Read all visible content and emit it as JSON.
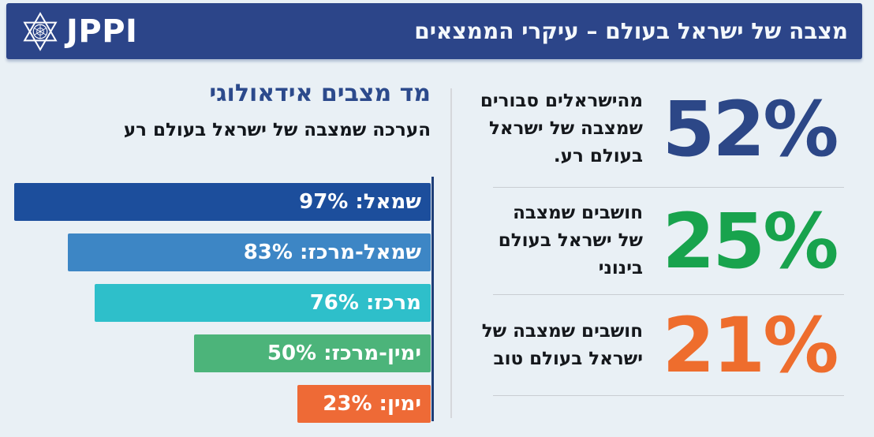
{
  "header": {
    "logo_text": "JPPI",
    "logo_icon": "star-of-david-icon",
    "title": "מצבה של ישראל בעולם – עיקרי הממצאים"
  },
  "stats": [
    {
      "value": "52%",
      "color": "#2c4787",
      "text": "מהישראלים סבורים\nשמצבה של ישראל\nבעולם רע."
    },
    {
      "value": "25%",
      "color": "#18a34d",
      "text": "חושבים שמצבה\nשל ישראל בעולם\nבינוני"
    },
    {
      "value": "21%",
      "color": "#ee6d2d",
      "text": "חושבים שמצבה של\nישראל בעולם טוב"
    }
  ],
  "chart_data": {
    "type": "bar",
    "orientation": "horizontal_rtl",
    "title": "מד מצבים אידאולוגי",
    "subtitle": "הערכה שמצבה של ישראל בעולם רע",
    "categories": [
      "שמאל",
      "שמאל-מרכז",
      "מרכז",
      "ימין-מרכז",
      "ימין"
    ],
    "values": [
      97,
      83,
      76,
      50,
      23
    ],
    "unit": "%",
    "xlim": [
      0,
      100
    ],
    "grid": false,
    "legend": "none",
    "bars": [
      {
        "label": "שמאל",
        "value": 97,
        "display": "שמאל: 97%",
        "color": "#1c4e9c"
      },
      {
        "label": "שמאל-מרכז",
        "value": 83,
        "display": "שמאל-מרכז: 83%",
        "color": "#3d86c5"
      },
      {
        "label": "מרכז",
        "value": 76,
        "display": "מרכז: 76%",
        "color": "#2ebfca"
      },
      {
        "label": "ימין-מרכז",
        "value": 50,
        "display": "ימין-מרכז: 50%",
        "color": "#4cb47a"
      },
      {
        "label": "ימין",
        "value": 23,
        "display": "ימין: 23%",
        "color": "#ee6a36"
      }
    ]
  }
}
